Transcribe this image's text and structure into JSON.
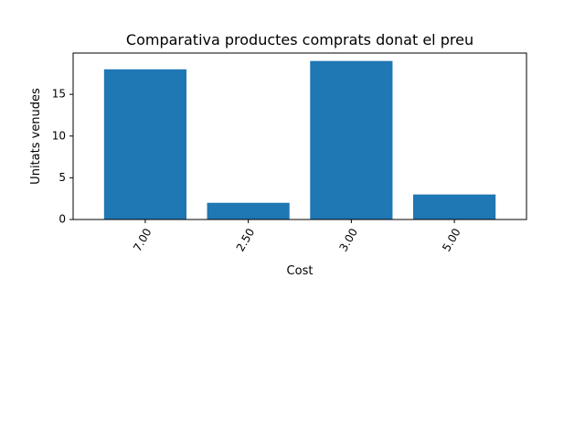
{
  "chart_data": {
    "type": "bar",
    "title": "Comparativa productes comprats donat el preu",
    "xlabel": "Cost",
    "ylabel": "Unitats venudes",
    "categories": [
      "7.00",
      "2.50",
      "3.00",
      "5.00"
    ],
    "values": [
      18,
      2,
      19,
      3
    ],
    "ylim": [
      0,
      19.95
    ],
    "yticks": [
      0,
      5,
      10,
      15
    ],
    "grid": false,
    "bar_color": "#1f77b4"
  }
}
